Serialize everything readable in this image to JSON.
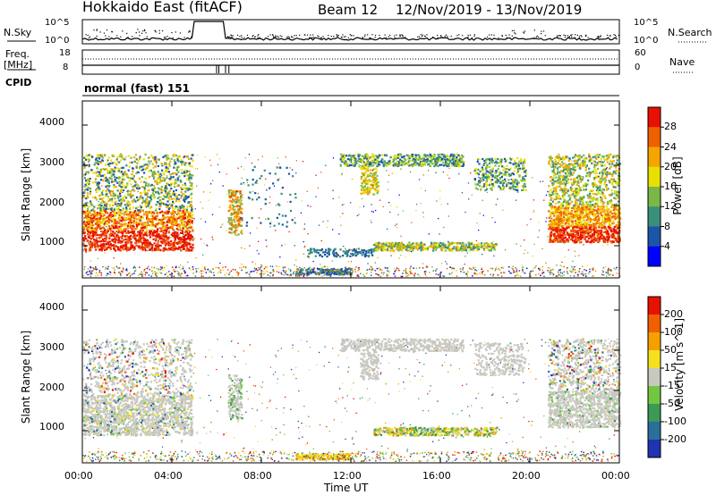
{
  "header": {
    "radar": "Hokkaido East (fitACF)",
    "beam": "Beam 12",
    "dates": "12/Nov/2019 - 13/Nov/2019"
  },
  "status": {
    "nsky_label": "N.Sky",
    "nsky_ticks": [
      "10^5",
      "10^0"
    ],
    "nsearch_label": "N.Search",
    "nsearch_ticks": [
      "10^5",
      "10^0"
    ],
    "freq_label_1": "Freq.",
    "freq_label_2": "[MHz]",
    "freq_ticks": [
      "18",
      "8"
    ],
    "nave_label": "Nave",
    "nave_ticks": [
      "60",
      "0"
    ],
    "cpid_label": "CPID",
    "cpid_value": "normal (fast) 151"
  },
  "chart_data": [
    {
      "type": "heatmap",
      "name": "power",
      "ylabel": "Slant Range [km]",
      "yticks": [
        "1000",
        "2000",
        "3000",
        "4000"
      ],
      "ylim": [
        200,
        4600
      ],
      "colorbar_label": "Power [dB]",
      "colorbar_ticks": [
        "4",
        "8",
        "12",
        "16",
        "20",
        "24",
        "28"
      ],
      "colors": [
        "#0000ff",
        "#1c55a8",
        "#3a8f7a",
        "#79b846",
        "#e8e000",
        "#f5a500",
        "#f06000",
        "#e81000"
      ]
    },
    {
      "type": "heatmap",
      "name": "velocity",
      "ylabel": "Slant Range [km]",
      "yticks": [
        "1000",
        "2000",
        "3000",
        "4000"
      ],
      "ylim": [
        200,
        4600
      ],
      "colorbar_label": "Velocity [m s^-1]",
      "colorbar_ticks": [
        "200",
        "100",
        "50",
        "15",
        "-15",
        "-50",
        "-100",
        "-200"
      ],
      "colors": [
        "#2033b0",
        "#2a6e9a",
        "#3b9a55",
        "#72c640",
        "#c8c8c0",
        "#f5e020",
        "#f5a000",
        "#f06000",
        "#e81000"
      ],
      "xticks": [
        "00:00",
        "04:00",
        "08:00",
        "12:00",
        "16:00",
        "20:00",
        "00:00"
      ],
      "xlabel": "Time UT"
    }
  ]
}
